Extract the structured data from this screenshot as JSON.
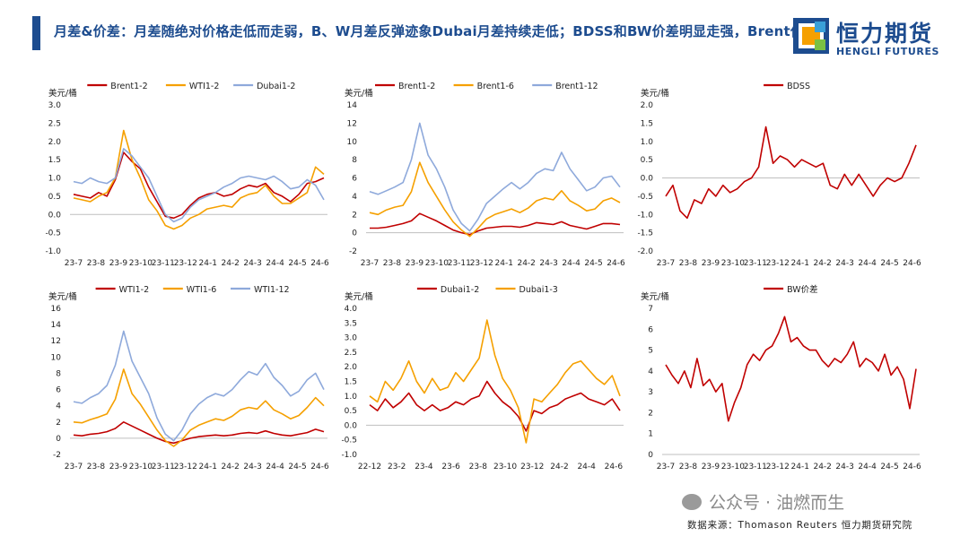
{
  "header": {
    "title": "月差&价差：月差随绝对价格走低而走弱，B、W月差反弹迹象Dubai月差持续走低；BDSS和BW价差明显走强，Brent偏强",
    "logo_cn": "恒力期货",
    "logo_en": "HENGLI FUTURES",
    "logo_colors": [
      "#1d4c8f",
      "#f5a000",
      "#3aa0d8",
      "#7ac043"
    ]
  },
  "footer": {
    "watermark": "公众号 · 油燃而生",
    "source": "数据来源：Thomason Reuters 恒力期货研究院"
  },
  "chart_data": [
    {
      "type": "line",
      "unit": "美元/桶",
      "ylim": [
        -1.0,
        3.0
      ],
      "yticks": [
        "3.0",
        "2.5",
        "2.0",
        "1.5",
        "1.0",
        "0.5",
        "0.0",
        "-0.5",
        "-1.0"
      ],
      "xticks": [
        "23-7",
        "23-8",
        "23-9",
        "23-10",
        "23-11",
        "23-12",
        "24-1",
        "24-2",
        "24-3",
        "24-4",
        "24-5",
        "24-6"
      ],
      "series": [
        {
          "name": "Brent1-2",
          "color": "#c00000",
          "values": [
            0.55,
            0.5,
            0.45,
            0.6,
            0.5,
            0.95,
            1.7,
            1.45,
            1.25,
            0.75,
            0.35,
            -0.05,
            -0.1,
            0.0,
            0.25,
            0.45,
            0.55,
            0.6,
            0.5,
            0.55,
            0.7,
            0.8,
            0.75,
            0.85,
            0.6,
            0.5,
            0.35,
            0.55,
            0.85,
            0.9,
            1.0
          ]
        },
        {
          "name": "WTI1-2",
          "color": "#f5a000",
          "values": [
            0.45,
            0.4,
            0.35,
            0.5,
            0.6,
            1.0,
            2.3,
            1.5,
            1.0,
            0.4,
            0.1,
            -0.3,
            -0.4,
            -0.3,
            -0.1,
            0.0,
            0.15,
            0.2,
            0.25,
            0.2,
            0.45,
            0.55,
            0.6,
            0.8,
            0.5,
            0.3,
            0.3,
            0.45,
            0.6,
            1.3,
            1.1
          ]
        },
        {
          "name": "Dubai1-2",
          "color": "#8ea9db",
          "values": [
            0.9,
            0.85,
            1.0,
            0.9,
            0.85,
            1.0,
            1.8,
            1.6,
            1.3,
            1.0,
            0.5,
            0.0,
            -0.2,
            -0.1,
            0.2,
            0.4,
            0.5,
            0.6,
            0.75,
            0.85,
            1.0,
            1.05,
            1.0,
            0.95,
            1.05,
            0.9,
            0.7,
            0.75,
            0.95,
            0.8,
            0.4
          ]
        }
      ]
    },
    {
      "type": "line",
      "unit": "美元/桶",
      "ylim": [
        -2,
        14
      ],
      "yticks": [
        "14",
        "12",
        "10",
        "8",
        "6",
        "4",
        "2",
        "0",
        "-2"
      ],
      "xticks": [
        "23-7",
        "23-8",
        "23-9",
        "23-10",
        "23-11",
        "23-12",
        "24-1",
        "24-2",
        "24-3",
        "24-4",
        "24-5",
        "24-6"
      ],
      "series": [
        {
          "name": "Brent1-2",
          "color": "#c00000",
          "values": [
            0.5,
            0.5,
            0.6,
            0.8,
            1.0,
            1.3,
            2.1,
            1.7,
            1.3,
            0.8,
            0.3,
            0.0,
            -0.2,
            0.2,
            0.5,
            0.6,
            0.7,
            0.7,
            0.6,
            0.8,
            1.1,
            1.0,
            0.9,
            1.2,
            0.8,
            0.6,
            0.4,
            0.7,
            1.0,
            1.0,
            0.9
          ]
        },
        {
          "name": "Brent1-6",
          "color": "#f5a000",
          "values": [
            2.2,
            2.0,
            2.5,
            2.8,
            3.0,
            4.5,
            7.7,
            5.5,
            4.0,
            2.5,
            1.2,
            0.3,
            -0.4,
            0.5,
            1.5,
            2.0,
            2.3,
            2.6,
            2.2,
            2.7,
            3.5,
            3.8,
            3.6,
            4.6,
            3.5,
            3.0,
            2.4,
            2.6,
            3.5,
            3.8,
            3.3
          ]
        },
        {
          "name": "Brent1-12",
          "color": "#8ea9db",
          "values": [
            4.5,
            4.2,
            4.6,
            5.0,
            5.5,
            8.0,
            12.0,
            8.5,
            7.0,
            5.0,
            2.5,
            1.0,
            0.2,
            1.5,
            3.2,
            4.0,
            4.8,
            5.5,
            4.8,
            5.5,
            6.5,
            7.0,
            6.8,
            8.8,
            7.0,
            5.8,
            4.6,
            5.0,
            6.0,
            6.2,
            5.0
          ]
        }
      ]
    },
    {
      "type": "line",
      "unit": "美元/桶",
      "ylim": [
        -2.0,
        2.0
      ],
      "yticks": [
        "2.0",
        "1.5",
        "1.0",
        "0.5",
        "0.0",
        "-0.5",
        "-1.0",
        "-1.5",
        "-2.0"
      ],
      "xticks": [
        "23-7",
        "23-8",
        "23-9",
        "23-10",
        "23-11",
        "23-12",
        "24-1",
        "24-2",
        "24-3",
        "24-4",
        "24-5",
        "24-6"
      ],
      "series": [
        {
          "name": "BDSS",
          "color": "#c00000",
          "values": [
            -0.5,
            -0.2,
            -0.9,
            -1.1,
            -0.6,
            -0.7,
            -0.3,
            -0.5,
            -0.2,
            -0.4,
            -0.3,
            -0.1,
            0.0,
            0.3,
            1.4,
            0.4,
            0.6,
            0.5,
            0.3,
            0.5,
            0.4,
            0.3,
            0.4,
            -0.2,
            -0.3,
            0.1,
            -0.2,
            0.1,
            -0.2,
            -0.5,
            -0.2,
            0.0,
            -0.1,
            0.0,
            0.4,
            0.9
          ]
        }
      ]
    },
    {
      "type": "line",
      "unit": "美元/桶",
      "ylim": [
        -2,
        16
      ],
      "yticks": [
        "16",
        "14",
        "12",
        "10",
        "8",
        "6",
        "4",
        "2",
        "0",
        "-2"
      ],
      "xticks": [
        "23-7",
        "23-8",
        "23-9",
        "23-10",
        "23-11",
        "23-12",
        "24-1",
        "24-2",
        "24-3",
        "24-4",
        "24-5",
        "24-6"
      ],
      "series": [
        {
          "name": "WTI1-2",
          "color": "#c00000",
          "values": [
            0.4,
            0.3,
            0.5,
            0.6,
            0.8,
            1.2,
            2.0,
            1.5,
            1.0,
            0.5,
            0.0,
            -0.4,
            -0.6,
            -0.3,
            0.0,
            0.2,
            0.3,
            0.4,
            0.3,
            0.4,
            0.6,
            0.7,
            0.6,
            0.9,
            0.6,
            0.4,
            0.3,
            0.5,
            0.7,
            1.1,
            0.8
          ]
        },
        {
          "name": "WTI1-6",
          "color": "#f5a000",
          "values": [
            2.0,
            1.9,
            2.3,
            2.6,
            3.0,
            4.8,
            8.5,
            5.5,
            4.2,
            2.6,
            1.0,
            -0.3,
            -1.0,
            -0.2,
            1.0,
            1.6,
            2.0,
            2.4,
            2.2,
            2.7,
            3.5,
            3.8,
            3.6,
            4.6,
            3.5,
            3.0,
            2.4,
            2.8,
            3.8,
            5.0,
            4.0
          ]
        },
        {
          "name": "WTI1-12",
          "color": "#8ea9db",
          "values": [
            4.5,
            4.3,
            5.0,
            5.5,
            6.5,
            9.0,
            13.2,
            9.5,
            7.5,
            5.5,
            2.5,
            0.5,
            -0.3,
            1.0,
            3.0,
            4.2,
            5.0,
            5.5,
            5.2,
            6.0,
            7.2,
            8.2,
            7.8,
            9.2,
            7.5,
            6.5,
            5.2,
            5.8,
            7.2,
            8.0,
            6.0
          ]
        }
      ]
    },
    {
      "type": "line",
      "unit": "美元/桶",
      "ylim": [
        -1.0,
        4.0
      ],
      "yticks": [
        "4.0",
        "3.5",
        "3.0",
        "2.5",
        "2.0",
        "1.5",
        "1.0",
        "0.5",
        "0.0",
        "-0.5",
        "-1.0"
      ],
      "xticks": [
        "22-12",
        "23-2",
        "23-4",
        "23-6",
        "23-8",
        "23-10",
        "23-12",
        "24-2",
        "24-4",
        "24-6"
      ],
      "series": [
        {
          "name": "Dubai1-2",
          "color": "#c00000",
          "values": [
            0.7,
            0.5,
            0.9,
            0.6,
            0.8,
            1.1,
            0.7,
            0.5,
            0.7,
            0.5,
            0.6,
            0.8,
            0.7,
            0.9,
            1.0,
            1.5,
            1.1,
            0.8,
            0.6,
            0.3,
            -0.2,
            0.5,
            0.4,
            0.6,
            0.7,
            0.9,
            1.0,
            1.1,
            0.9,
            0.8,
            0.7,
            0.9,
            0.5
          ]
        },
        {
          "name": "Dubai1-3",
          "color": "#f5a000",
          "values": [
            1.0,
            0.8,
            1.5,
            1.2,
            1.6,
            2.2,
            1.5,
            1.1,
            1.6,
            1.2,
            1.3,
            1.8,
            1.5,
            1.9,
            2.3,
            3.6,
            2.4,
            1.6,
            1.2,
            0.6,
            -0.6,
            0.9,
            0.8,
            1.1,
            1.4,
            1.8,
            2.1,
            2.2,
            1.9,
            1.6,
            1.4,
            1.7,
            1.0
          ]
        }
      ]
    },
    {
      "type": "line",
      "unit": "美元/桶",
      "ylim": [
        0,
        7
      ],
      "yticks": [
        "7",
        "6",
        "5",
        "4",
        "3",
        "2",
        "1",
        "0"
      ],
      "xticks": [
        "23-7",
        "23-8",
        "23-9",
        "23-10",
        "23-11",
        "23-12",
        "24-1",
        "24-2",
        "24-3",
        "24-4",
        "24-5",
        "24-6"
      ],
      "series": [
        {
          "name": "BW价差",
          "color": "#c00000",
          "values": [
            4.3,
            3.8,
            3.4,
            4.0,
            3.2,
            4.6,
            3.3,
            3.6,
            3.0,
            3.4,
            1.6,
            2.5,
            3.2,
            4.3,
            4.8,
            4.5,
            5.0,
            5.2,
            5.8,
            6.6,
            5.4,
            5.6,
            5.2,
            5.0,
            5.0,
            4.5,
            4.2,
            4.6,
            4.4,
            4.8,
            5.4,
            4.2,
            4.6,
            4.4,
            4.0,
            4.8,
            3.8,
            4.2,
            3.6,
            2.2,
            4.1
          ]
        }
      ]
    }
  ]
}
